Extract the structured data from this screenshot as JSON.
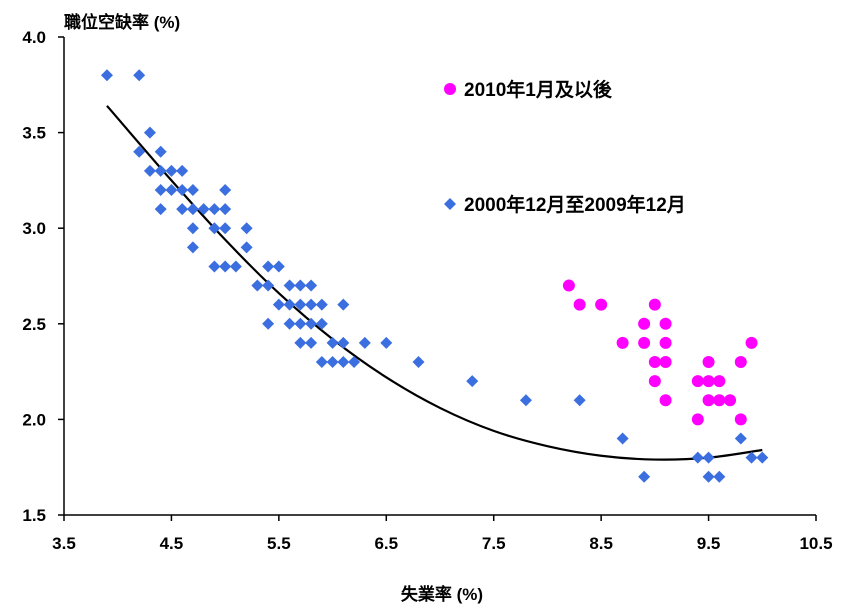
{
  "chart_data": {
    "type": "scatter",
    "xlabel": "失業率 (%)",
    "ylabel": "職位空缺率 (%)",
    "xlim": [
      3.5,
      10.5
    ],
    "ylim": [
      1.5,
      4.0
    ],
    "x_ticks": [
      "3.5",
      "4.5",
      "5.5",
      "6.5",
      "7.5",
      "8.5",
      "9.5",
      "10.5"
    ],
    "y_ticks": [
      "1.5",
      "2.0",
      "2.5",
      "3.0",
      "3.5",
      "4.0"
    ],
    "legend_placement": "top-right",
    "grid": false,
    "series": [
      {
        "name": "2010年1月及以後",
        "color": "#ff00ff",
        "marker": "circle",
        "points": [
          [
            8.2,
            2.7
          ],
          [
            8.3,
            2.6
          ],
          [
            8.5,
            2.6
          ],
          [
            8.7,
            2.4
          ],
          [
            8.9,
            2.5
          ],
          [
            8.9,
            2.4
          ],
          [
            9.0,
            2.6
          ],
          [
            9.0,
            2.3
          ],
          [
            9.0,
            2.2
          ],
          [
            9.1,
            2.5
          ],
          [
            9.1,
            2.4
          ],
          [
            9.1,
            2.3
          ],
          [
            9.1,
            2.1
          ],
          [
            9.4,
            2.2
          ],
          [
            9.4,
            2.0
          ],
          [
            9.5,
            2.3
          ],
          [
            9.5,
            2.2
          ],
          [
            9.5,
            2.1
          ],
          [
            9.6,
            2.2
          ],
          [
            9.6,
            2.1
          ],
          [
            9.7,
            2.1
          ],
          [
            9.8,
            2.3
          ],
          [
            9.8,
            2.0
          ],
          [
            9.9,
            2.4
          ]
        ]
      },
      {
        "name": "2000年12月至2009年12月",
        "color": "#3b6fe0",
        "marker": "diamond",
        "points": [
          [
            3.9,
            3.8
          ],
          [
            4.2,
            3.8
          ],
          [
            4.2,
            3.4
          ],
          [
            4.3,
            3.5
          ],
          [
            4.3,
            3.3
          ],
          [
            4.4,
            3.4
          ],
          [
            4.4,
            3.3
          ],
          [
            4.4,
            3.2
          ],
          [
            4.4,
            3.1
          ],
          [
            4.5,
            3.3
          ],
          [
            4.5,
            3.2
          ],
          [
            4.6,
            3.3
          ],
          [
            4.6,
            3.2
          ],
          [
            4.6,
            3.1
          ],
          [
            4.7,
            3.2
          ],
          [
            4.7,
            3.1
          ],
          [
            4.7,
            3.0
          ],
          [
            4.7,
            2.9
          ],
          [
            4.8,
            3.1
          ],
          [
            4.9,
            3.1
          ],
          [
            4.9,
            3.0
          ],
          [
            4.9,
            2.8
          ],
          [
            5.0,
            3.2
          ],
          [
            5.0,
            3.1
          ],
          [
            5.0,
            3.0
          ],
          [
            5.0,
            2.8
          ],
          [
            5.1,
            2.8
          ],
          [
            5.2,
            3.0
          ],
          [
            5.2,
            2.9
          ],
          [
            5.3,
            2.7
          ],
          [
            5.4,
            2.8
          ],
          [
            5.4,
            2.7
          ],
          [
            5.4,
            2.5
          ],
          [
            5.5,
            2.8
          ],
          [
            5.5,
            2.6
          ],
          [
            5.6,
            2.7
          ],
          [
            5.6,
            2.6
          ],
          [
            5.6,
            2.5
          ],
          [
            5.7,
            2.7
          ],
          [
            5.7,
            2.6
          ],
          [
            5.7,
            2.5
          ],
          [
            5.7,
            2.4
          ],
          [
            5.8,
            2.7
          ],
          [
            5.8,
            2.6
          ],
          [
            5.8,
            2.5
          ],
          [
            5.8,
            2.4
          ],
          [
            5.9,
            2.6
          ],
          [
            5.9,
            2.5
          ],
          [
            5.9,
            2.3
          ],
          [
            6.0,
            2.4
          ],
          [
            6.0,
            2.3
          ],
          [
            6.1,
            2.6
          ],
          [
            6.1,
            2.4
          ],
          [
            6.1,
            2.3
          ],
          [
            6.2,
            2.3
          ],
          [
            6.3,
            2.4
          ],
          [
            6.5,
            2.4
          ],
          [
            6.8,
            2.3
          ],
          [
            7.3,
            2.2
          ],
          [
            7.8,
            2.1
          ],
          [
            8.3,
            2.1
          ],
          [
            8.7,
            1.9
          ],
          [
            8.9,
            1.7
          ],
          [
            9.4,
            1.8
          ],
          [
            9.5,
            1.8
          ],
          [
            9.5,
            1.7
          ],
          [
            9.6,
            1.7
          ],
          [
            9.8,
            1.9
          ],
          [
            9.9,
            1.8
          ],
          [
            10.0,
            1.8
          ]
        ]
      },
      {
        "type": "line",
        "color": "#000000",
        "points": [
          [
            3.9,
            3.64
          ],
          [
            4.5,
            3.25
          ],
          [
            5.0,
            2.94
          ],
          [
            5.5,
            2.66
          ],
          [
            6.0,
            2.42
          ],
          [
            6.5,
            2.22
          ],
          [
            7.0,
            2.06
          ],
          [
            7.5,
            1.94
          ],
          [
            8.0,
            1.86
          ],
          [
            8.5,
            1.81
          ],
          [
            9.0,
            1.79
          ],
          [
            9.5,
            1.8
          ],
          [
            10.0,
            1.84
          ]
        ]
      }
    ]
  }
}
